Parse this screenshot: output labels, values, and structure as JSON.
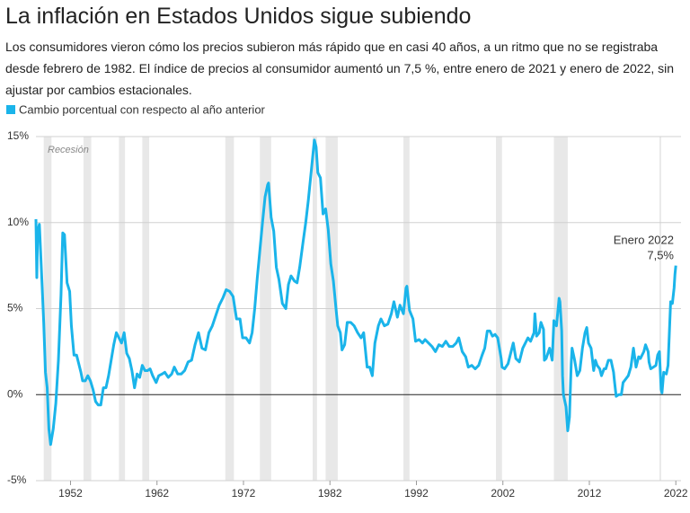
{
  "chart_data": {
    "type": "line",
    "title": "La inflación en Estados Unidos sigue subiendo",
    "subtitle": "Los consumidores vieron cómo los precios subieron más rápido que en casi 40 años, a un ritmo que no se registraba desde febrero de 1982. El índice de precios al consumidor aumentó un 7,5 %, entre enero de 2021 y enero de 2022, sin ajustar por cambios estacionales.",
    "recession_label": "Recesión",
    "recessions": [
      [
        1948.9,
        1949.8
      ],
      [
        1953.5,
        1954.4
      ],
      [
        1957.6,
        1958.3
      ],
      [
        1960.3,
        1961.1
      ],
      [
        1969.9,
        1970.9
      ],
      [
        1973.9,
        1975.2
      ],
      [
        1980.0,
        1980.5
      ],
      [
        1981.5,
        1982.9
      ],
      [
        1990.5,
        1991.2
      ],
      [
        2001.2,
        2001.9
      ],
      [
        2007.9,
        2009.5
      ],
      [
        2020.1,
        2020.3
      ]
    ],
    "annotation": {
      "label": "Enero 2022",
      "value_label": "7,5%"
    },
    "xlim": [
      1948,
      2022.6
    ],
    "xticks": [
      1952,
      1962,
      1972,
      1982,
      1992,
      2002,
      2012,
      2022
    ],
    "ylim": [
      -5,
      15
    ],
    "yticks": [
      {
        "value": -5,
        "label": "-5%"
      },
      {
        "value": 0,
        "label": "0%"
      },
      {
        "value": 5,
        "label": "5%"
      },
      {
        "value": 10,
        "label": "10%"
      },
      {
        "value": 15,
        "label": "15%"
      }
    ],
    "grid": true,
    "series": [
      {
        "name": "Cambio porcentual con respecto al año anterior",
        "color": "#1ab4ea",
        "x": [
          1948.0,
          1948.1,
          1948.2,
          1948.4,
          1948.7,
          1948.9,
          1949.1,
          1949.3,
          1949.5,
          1949.7,
          1950.0,
          1950.3,
          1950.6,
          1950.9,
          1951.1,
          1951.3,
          1951.6,
          1951.9,
          1952.1,
          1952.4,
          1952.7,
          1952.9,
          1953.2,
          1953.4,
          1953.7,
          1954.0,
          1954.3,
          1954.6,
          1954.9,
          1955.2,
          1955.5,
          1955.8,
          1956.1,
          1956.4,
          1956.7,
          1957.0,
          1957.3,
          1957.6,
          1957.9,
          1958.2,
          1958.5,
          1958.8,
          1959.1,
          1959.4,
          1959.7,
          1960.0,
          1960.3,
          1960.6,
          1960.9,
          1961.2,
          1961.5,
          1961.9,
          1962.2,
          1962.6,
          1962.9,
          1963.3,
          1963.7,
          1964.0,
          1964.4,
          1964.8,
          1965.2,
          1965.6,
          1966.0,
          1966.4,
          1966.8,
          1967.2,
          1967.6,
          1968.0,
          1968.4,
          1968.8,
          1969.2,
          1969.6,
          1970.0,
          1970.4,
          1970.8,
          1971.2,
          1971.6,
          1971.9,
          1972.3,
          1972.7,
          1973.0,
          1973.3,
          1973.6,
          1973.9,
          1974.2,
          1974.5,
          1974.8,
          1974.9,
          1975.2,
          1975.5,
          1975.8,
          1976.1,
          1976.5,
          1976.9,
          1977.2,
          1977.5,
          1977.9,
          1978.2,
          1978.5,
          1978.9,
          1979.2,
          1979.5,
          1979.9,
          1980.2,
          1980.4,
          1980.6,
          1980.9,
          1981.2,
          1981.5,
          1981.8,
          1982.1,
          1982.4,
          1982.7,
          1982.9,
          1983.2,
          1983.4,
          1983.7,
          1984.0,
          1984.4,
          1984.8,
          1985.2,
          1985.6,
          1985.9,
          1986.3,
          1986.6,
          1986.9,
          1987.2,
          1987.6,
          1987.9,
          1988.3,
          1988.7,
          1989.1,
          1989.4,
          1989.8,
          1990.1,
          1990.5,
          1990.8,
          1990.9,
          1991.2,
          1991.6,
          1991.9,
          1992.3,
          1992.7,
          1993.0,
          1993.4,
          1993.8,
          1994.2,
          1994.6,
          1995.0,
          1995.4,
          1995.8,
          1996.2,
          1996.6,
          1996.9,
          1997.3,
          1997.7,
          1998.0,
          1998.4,
          1998.8,
          1999.2,
          1999.6,
          1999.9,
          2000.2,
          2000.5,
          2000.8,
          2001.1,
          2001.4,
          2001.8,
          2001.9,
          2002.2,
          2002.6,
          2002.9,
          2003.2,
          2003.5,
          2003.9,
          2004.3,
          2004.6,
          2004.9,
          2005.2,
          2005.6,
          2005.7,
          2005.9,
          2006.2,
          2006.4,
          2006.7,
          2006.8,
          2007.0,
          2007.4,
          2007.7,
          2007.9,
          2008.2,
          2008.5,
          2008.6,
          2008.8,
          2008.9,
          2009.0,
          2009.3,
          2009.5,
          2009.7,
          2009.9,
          2010.0,
          2010.3,
          2010.6,
          2010.9,
          2011.2,
          2011.5,
          2011.7,
          2011.9,
          2012.2,
          2012.5,
          2012.7,
          2012.9,
          2013.2,
          2013.4,
          2013.7,
          2013.9,
          2014.2,
          2014.5,
          2014.8,
          2014.9,
          2015.1,
          2015.4,
          2015.7,
          2015.9,
          2016.2,
          2016.5,
          2016.8,
          2017.1,
          2017.4,
          2017.7,
          2017.9,
          2018.3,
          2018.5,
          2018.8,
          2018.9,
          2019.1,
          2019.4,
          2019.7,
          2019.9,
          2020.1,
          2020.3,
          2020.4,
          2020.6,
          2020.9,
          2021.1,
          2021.3,
          2021.4,
          2021.6,
          2021.8,
          2021.9,
          2022.0
        ],
        "values": [
          10.2,
          6.8,
          9.5,
          9.9,
          6.5,
          4.2,
          1.3,
          0.4,
          -2.0,
          -2.9,
          -2.0,
          -0.5,
          2.0,
          5.8,
          9.4,
          9.3,
          6.5,
          6.0,
          4.0,
          2.3,
          2.3,
          1.9,
          1.3,
          0.8,
          0.8,
          1.1,
          0.8,
          0.3,
          -0.4,
          -0.6,
          -0.6,
          0.4,
          0.4,
          1.1,
          2.0,
          2.9,
          3.6,
          3.3,
          3.0,
          3.6,
          2.4,
          2.1,
          1.4,
          0.4,
          1.2,
          1.0,
          1.7,
          1.4,
          1.4,
          1.5,
          1.1,
          0.7,
          1.1,
          1.2,
          1.3,
          1.0,
          1.2,
          1.6,
          1.2,
          1.2,
          1.4,
          1.9,
          2.0,
          2.9,
          3.6,
          2.7,
          2.6,
          3.6,
          4.0,
          4.6,
          5.2,
          5.6,
          6.1,
          6.0,
          5.7,
          4.4,
          4.4,
          3.3,
          3.3,
          3.0,
          3.6,
          5.0,
          6.8,
          8.4,
          10.0,
          11.5,
          12.2,
          12.3,
          10.3,
          9.5,
          7.4,
          6.7,
          5.3,
          5.0,
          6.4,
          6.9,
          6.6,
          6.5,
          7.4,
          8.9,
          10.0,
          11.3,
          13.3,
          14.8,
          14.4,
          12.9,
          12.6,
          10.5,
          10.8,
          9.6,
          7.6,
          6.6,
          5.0,
          4.0,
          3.6,
          2.6,
          2.9,
          4.2,
          4.2,
          4.0,
          3.6,
          3.3,
          3.6,
          1.6,
          1.6,
          1.1,
          3.0,
          4.0,
          4.4,
          4.0,
          4.1,
          4.7,
          5.4,
          4.5,
          5.2,
          4.7,
          6.2,
          6.3,
          4.9,
          4.4,
          3.1,
          3.2,
          3.0,
          3.2,
          3.0,
          2.8,
          2.5,
          2.9,
          2.8,
          3.1,
          2.8,
          2.8,
          3.0,
          3.3,
          2.5,
          2.2,
          1.6,
          1.7,
          1.5,
          1.7,
          2.3,
          2.7,
          3.7,
          3.7,
          3.4,
          3.5,
          3.3,
          2.1,
          1.6,
          1.5,
          1.8,
          2.4,
          3.0,
          2.1,
          1.9,
          2.7,
          3.0,
          3.3,
          3.1,
          3.6,
          4.7,
          3.4,
          3.6,
          4.2,
          3.8,
          2.0,
          2.1,
          2.7,
          2.0,
          4.3,
          4.0,
          5.6,
          5.4,
          3.7,
          1.1,
          0.0,
          -0.7,
          -2.1,
          -1.3,
          1.8,
          2.7,
          2.0,
          1.1,
          1.4,
          2.7,
          3.6,
          3.9,
          3.0,
          2.7,
          1.4,
          2.0,
          1.7,
          1.5,
          1.1,
          1.5,
          1.5,
          2.0,
          2.0,
          1.3,
          0.8,
          -0.1,
          0.0,
          0.0,
          0.7,
          0.9,
          1.1,
          1.6,
          2.7,
          1.6,
          2.2,
          2.1,
          2.5,
          2.9,
          2.5,
          1.9,
          1.5,
          1.6,
          1.7,
          2.3,
          2.5,
          0.3,
          0.1,
          1.3,
          1.2,
          1.7,
          4.2,
          5.4,
          5.3,
          6.2,
          7.0,
          7.5
        ]
      }
    ]
  }
}
